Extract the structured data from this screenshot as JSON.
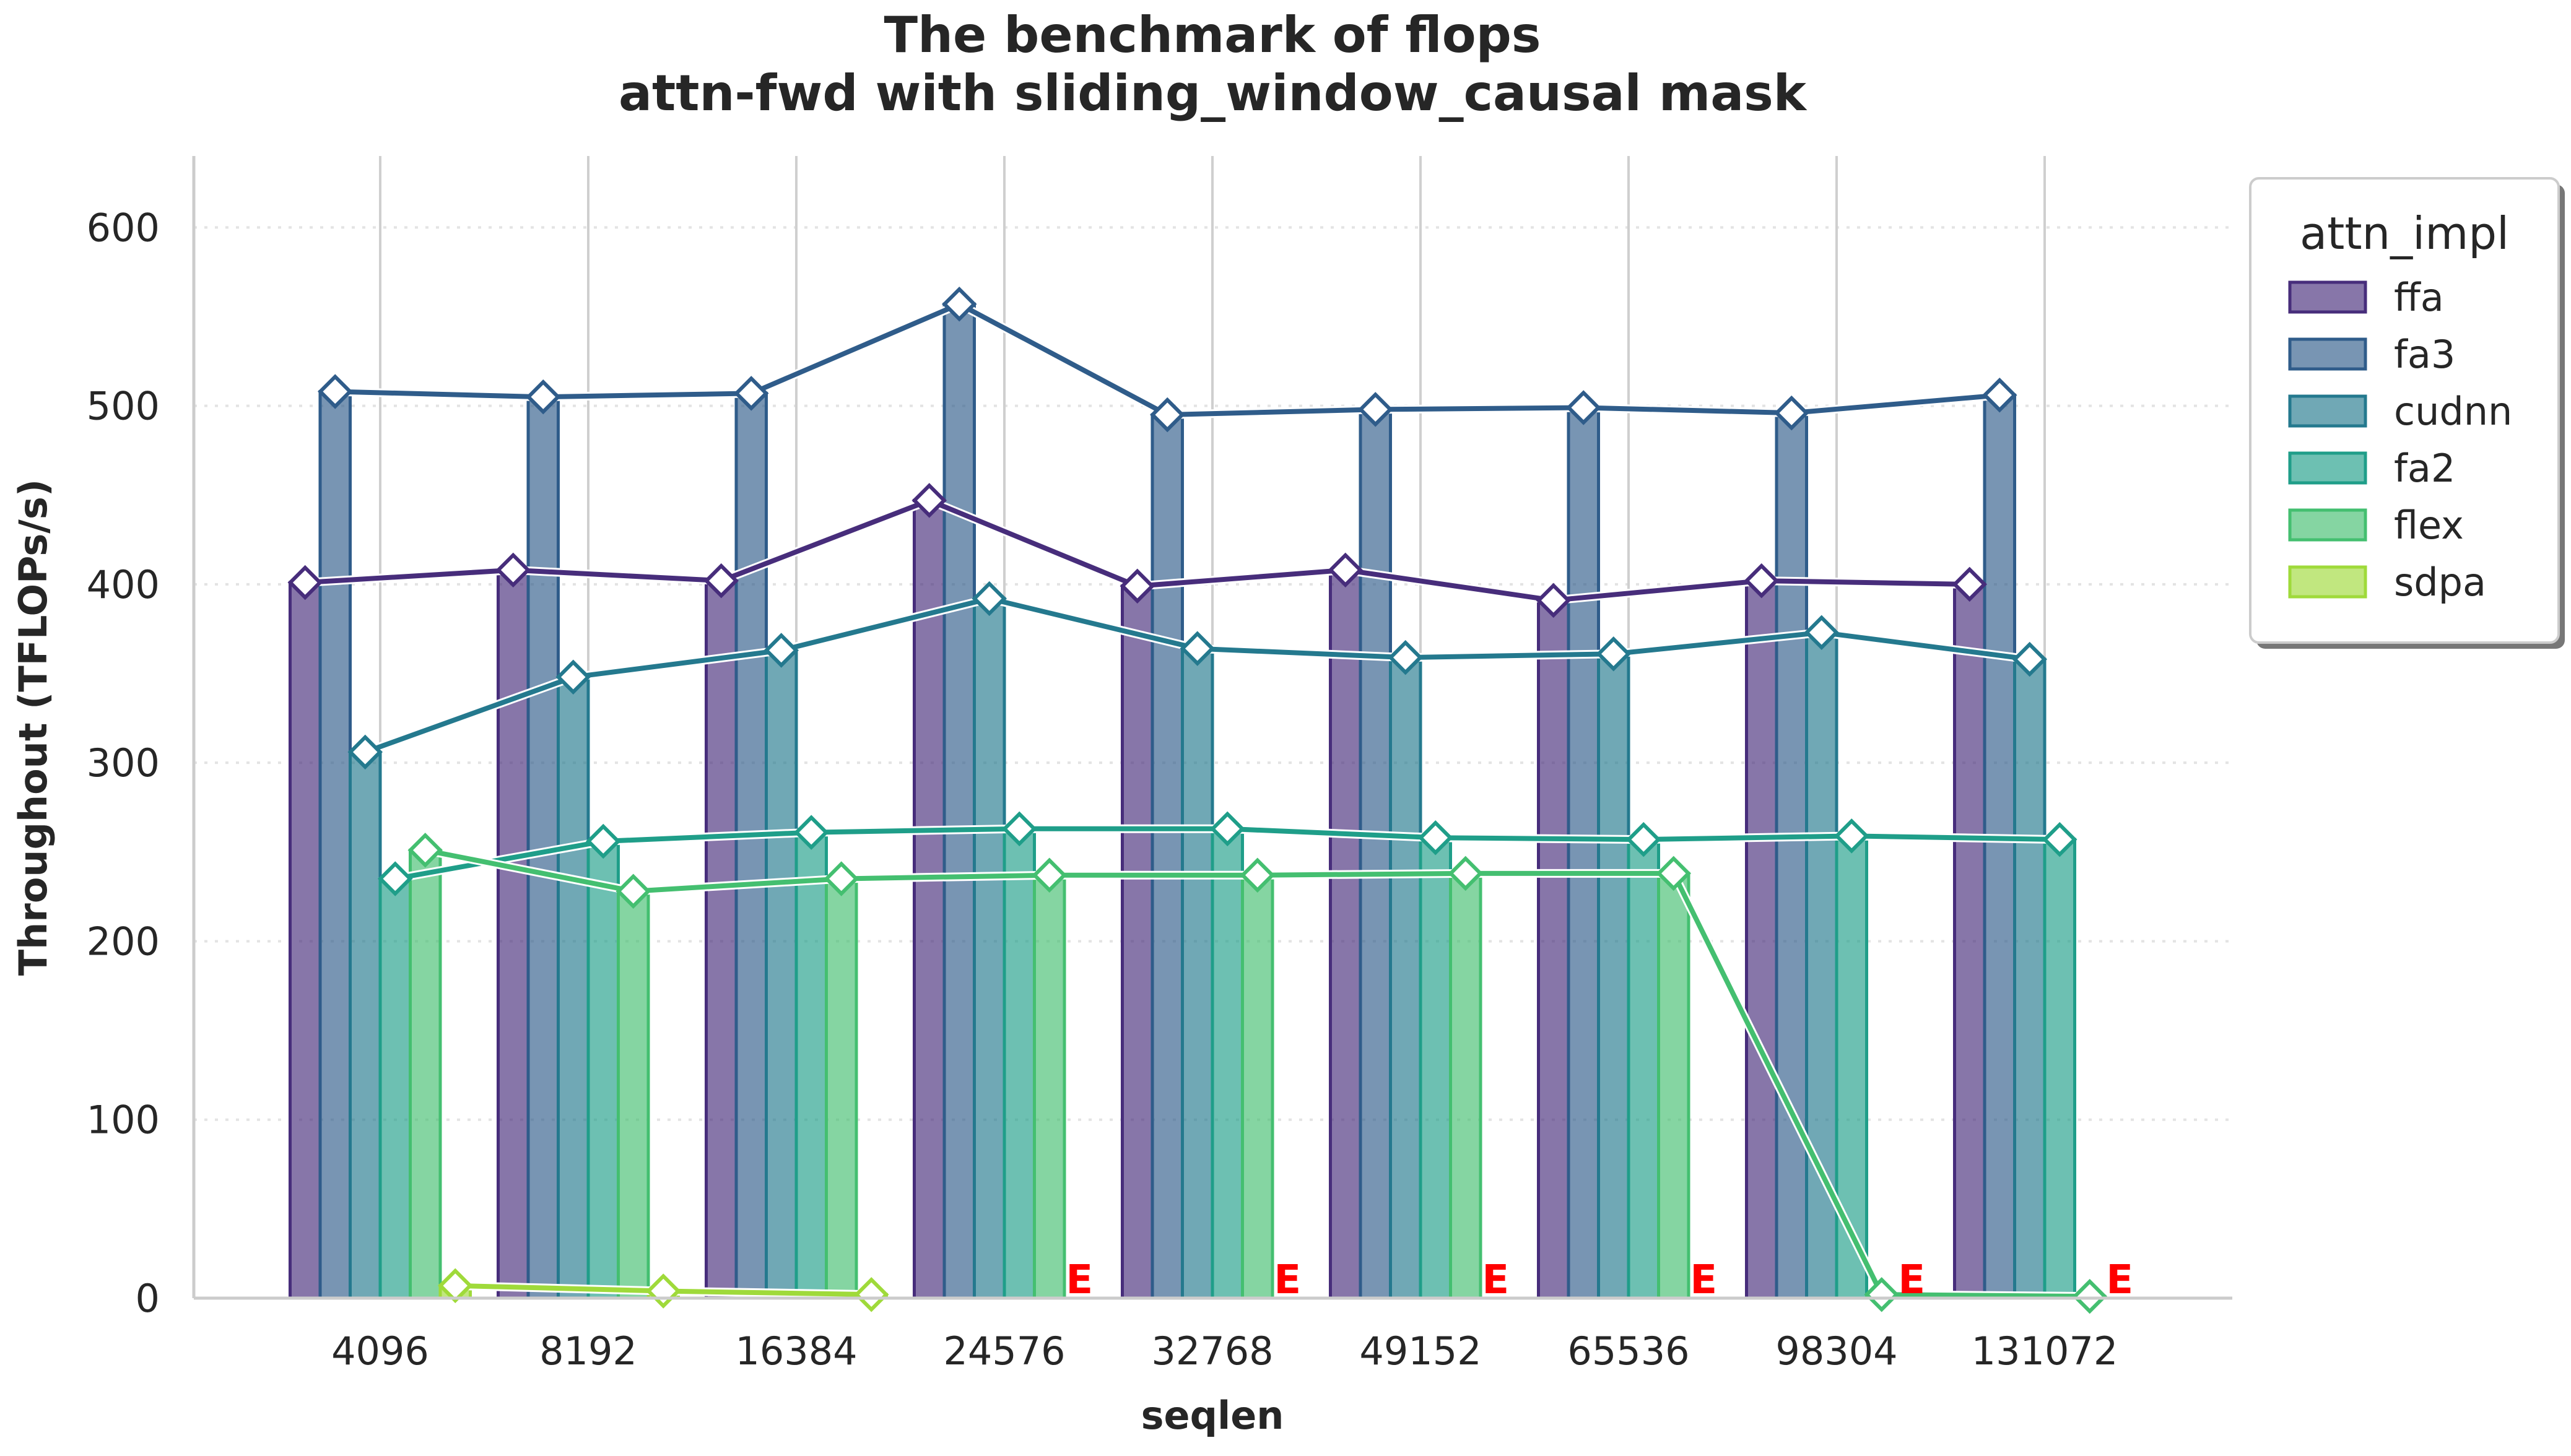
{
  "chart_data": {
    "type": "bar",
    "title_line1": "The benchmark of flops",
    "title_line2": "attn-fwd with sliding_window_causal mask",
    "xlabel": "seqlen",
    "ylabel": "Throughout (TFLOPs/s)",
    "ylim": [
      0,
      640
    ],
    "yticks": [
      0,
      100,
      200,
      300,
      400,
      500,
      600
    ],
    "grid": "y-dotted",
    "legend_title": "attn_impl",
    "legend_position": "outside-top-right",
    "error_marker": "E",
    "categories": [
      "4096",
      "8192",
      "16384",
      "24576",
      "32768",
      "49152",
      "65536",
      "98304",
      "131072"
    ],
    "series": [
      {
        "name": "ffa",
        "color": "#472d7b",
        "values": [
          401,
          408,
          402,
          447,
          399,
          408,
          391,
          402,
          400
        ]
      },
      {
        "name": "fa3",
        "color": "#2f5c8a",
        "values": [
          508,
          505,
          507,
          557,
          495,
          498,
          499,
          496,
          506
        ]
      },
      {
        "name": "cudnn",
        "color": "#24798e",
        "values": [
          306,
          348,
          363,
          392,
          364,
          359,
          361,
          373,
          358
        ]
      },
      {
        "name": "fa2",
        "color": "#1f9e89",
        "values": [
          235,
          256,
          261,
          263,
          263,
          258,
          257,
          259,
          257
        ]
      },
      {
        "name": "flex",
        "color": "#44bf70",
        "values": [
          251,
          228,
          235,
          237,
          237,
          238,
          238,
          2,
          1
        ]
      },
      {
        "name": "sdpa",
        "color": "#9fda3a",
        "values": [
          7,
          4,
          2,
          null,
          null,
          null,
          null,
          null,
          null
        ]
      }
    ]
  }
}
